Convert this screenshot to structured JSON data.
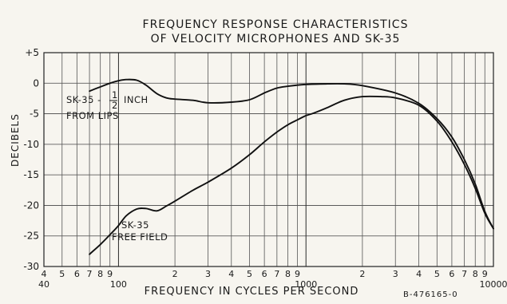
{
  "chart_data": {
    "type": "line",
    "title": "FREQUENCY RESPONSE CHARACTERISTICS",
    "subtitle": "OF VELOCITY MICROPHONES AND SK-35",
    "xlabel": "FREQUENCY IN CYCLES PER SECOND",
    "ylabel": "DECIBELS",
    "x_scale": "log",
    "xlim": [
      40,
      10000
    ],
    "ylim": [
      -30,
      5
    ],
    "grid": true,
    "y_ticks": [
      5,
      0,
      -5,
      -10,
      -15,
      -20,
      -25,
      -30
    ],
    "y_tick_labels": [
      "+5",
      "0",
      "-5",
      "-10",
      "-15",
      "-20",
      "-25",
      "-30"
    ],
    "x_ticks_minor": [
      {
        "value": 40,
        "label": "4"
      },
      {
        "value": 50,
        "label": "5"
      },
      {
        "value": 60,
        "label": "6"
      },
      {
        "value": 70,
        "label": "7"
      },
      {
        "value": 80,
        "label": "8"
      },
      {
        "value": 90,
        "label": "9"
      },
      {
        "value": 200,
        "label": "2"
      },
      {
        "value": 300,
        "label": "3"
      },
      {
        "value": 400,
        "label": "4"
      },
      {
        "value": 500,
        "label": "5"
      },
      {
        "value": 600,
        "label": "6"
      },
      {
        "value": 700,
        "label": "7"
      },
      {
        "value": 800,
        "label": "8"
      },
      {
        "value": 900,
        "label": "9"
      },
      {
        "value": 2000,
        "label": "2"
      },
      {
        "value": 3000,
        "label": "3"
      },
      {
        "value": 4000,
        "label": "4"
      },
      {
        "value": 5000,
        "label": "5"
      },
      {
        "value": 6000,
        "label": "6"
      },
      {
        "value": 7000,
        "label": "7"
      },
      {
        "value": 8000,
        "label": "8"
      },
      {
        "value": 9000,
        "label": "9"
      }
    ],
    "x_ticks_major": [
      {
        "value": 40,
        "label": "40"
      },
      {
        "value": 100,
        "label": "100"
      },
      {
        "value": 1000,
        "label": "1000"
      },
      {
        "value": 10000,
        "label": "10000"
      }
    ],
    "series": [
      {
        "name": "SK-35 - 1/2 INCH FROM LIPS",
        "x": [
          70,
          80,
          90,
          100,
          110,
          125,
          140,
          160,
          180,
          200,
          250,
          300,
          400,
          500,
          600,
          700,
          800,
          1000,
          1300,
          1600,
          2000,
          3000,
          4000,
          5000,
          6000,
          7000,
          8000,
          9000,
          10000
        ],
        "y": [
          -1.3,
          -0.6,
          0,
          0.4,
          0.6,
          0.5,
          -0.3,
          -1.7,
          -2.4,
          -2.6,
          -2.8,
          -3.2,
          -3.1,
          -2.7,
          -1.6,
          -0.8,
          -0.5,
          -0.2,
          -0.1,
          -0.1,
          -0.4,
          -1.6,
          -3.3,
          -5.8,
          -8.8,
          -12.5,
          -16.5,
          -21.0,
          -23.8
        ]
      },
      {
        "name": "SK-35 FREE FIELD",
        "x": [
          70,
          80,
          90,
          100,
          110,
          125,
          140,
          160,
          180,
          200,
          250,
          300,
          400,
          500,
          600,
          700,
          800,
          900,
          1000,
          1100,
          1300,
          1600,
          2000,
          2500,
          3000,
          4000,
          5000,
          6000,
          7000,
          8000,
          9000,
          10000
        ],
        "y": [
          -28.0,
          -26.4,
          -24.8,
          -23.3,
          -21.7,
          -20.6,
          -20.5,
          -20.9,
          -20.1,
          -19.3,
          -17.5,
          -16.2,
          -13.9,
          -11.7,
          -9.6,
          -8.0,
          -6.8,
          -6.0,
          -5.3,
          -4.9,
          -4.0,
          -2.8,
          -2.2,
          -2.2,
          -2.4,
          -3.6,
          -6.2,
          -9.6,
          -13.3,
          -17.2,
          -21.3,
          -23.8
        ]
      }
    ],
    "annotations": [
      {
        "text_line1": "SK-35 -",
        "fraction_num": "1",
        "fraction_den": "2",
        "text_line1_tail": "INCH",
        "text_line2": "FROM LIPS"
      },
      {
        "text_line1": "SK-35",
        "text_line2": "FREE FIELD"
      }
    ],
    "figure_id": "B-476165-0"
  }
}
